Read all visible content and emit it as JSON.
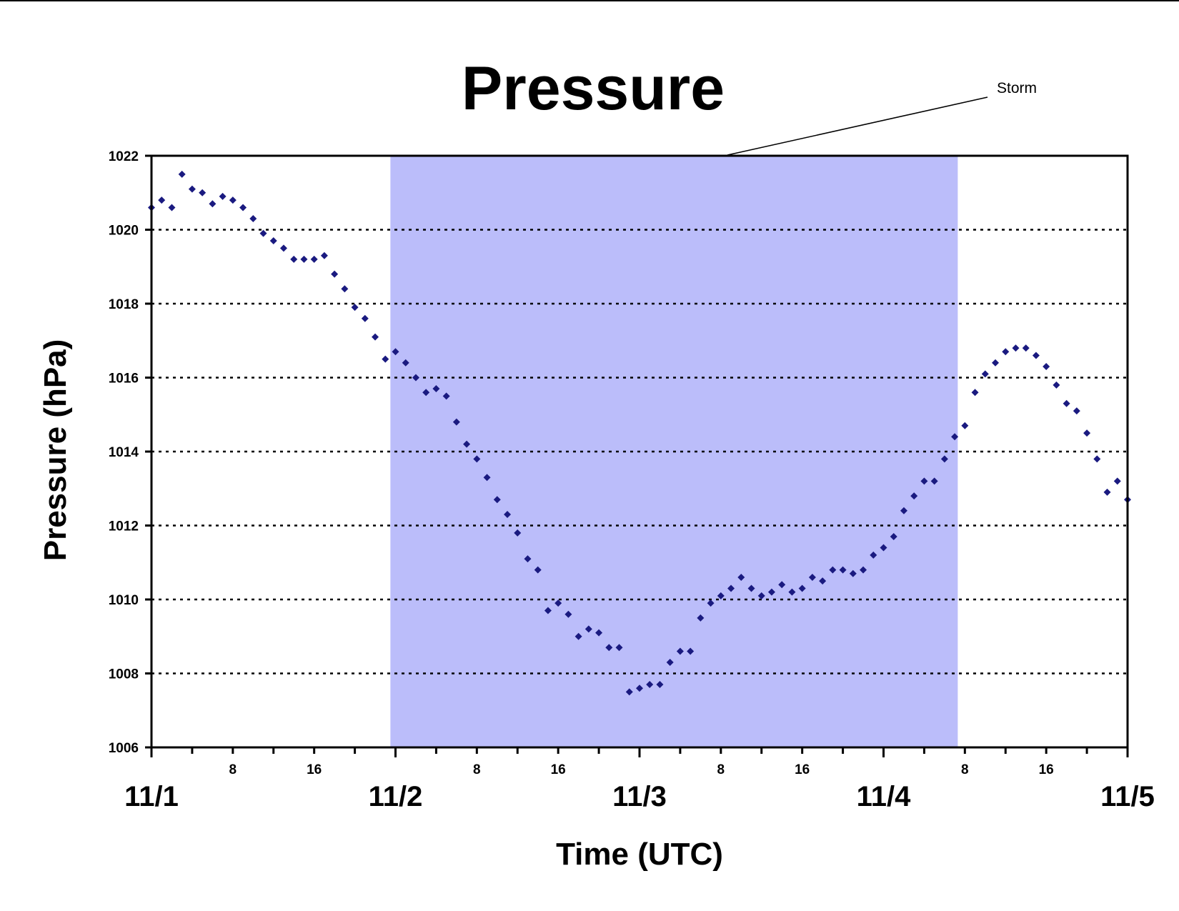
{
  "chart_data": {
    "type": "scatter",
    "title": "Pressure",
    "xlabel": "Time (UTC)",
    "ylabel": "Pressure (hPa)",
    "ylim": [
      1006,
      1022
    ],
    "yticks": [
      "1006",
      "1008",
      "1010",
      "1012",
      "1014",
      "1016",
      "1018",
      "1020",
      "1022"
    ],
    "xlim_hours": [
      0,
      96
    ],
    "x_major_labels": [
      "11/1",
      "11/2",
      "11/3",
      "11/4",
      "11/5"
    ],
    "x_minor_labels": [
      "8",
      "16",
      "8",
      "16",
      "8",
      "16",
      "8",
      "16"
    ],
    "grid": "horizontal dotted",
    "marker_color": "#1a1a80",
    "shade_color": "#bbbdfa",
    "annotation": {
      "label": "Storm",
      "shaded_range_hours": [
        23.5,
        79.3
      ]
    },
    "series": [
      {
        "x_hours": [
          0,
          1,
          2,
          3,
          4,
          5,
          6,
          7,
          8,
          9,
          10,
          11,
          12,
          13,
          14,
          15,
          16,
          17,
          18,
          19,
          20,
          21,
          22,
          23,
          24,
          25,
          26,
          27,
          28,
          29,
          30,
          31,
          32,
          33,
          34,
          35,
          36,
          37,
          38,
          39,
          40,
          41,
          42,
          43,
          44,
          45,
          46,
          47,
          48,
          49,
          50,
          51,
          52,
          53,
          54,
          55,
          56,
          57,
          58,
          59,
          60,
          61,
          62,
          63,
          64,
          65,
          66,
          67,
          68,
          69,
          70,
          71,
          72,
          73,
          74,
          75,
          76,
          77,
          78,
          79,
          80,
          81,
          82,
          83,
          84,
          85,
          86,
          87,
          88,
          89,
          90,
          91,
          92,
          93,
          94,
          95,
          96
        ],
        "values": [
          1020.6,
          1020.8,
          1020.6,
          1021.5,
          1021.1,
          1021.0,
          1020.7,
          1020.9,
          1020.8,
          1020.6,
          1020.3,
          1019.9,
          1019.7,
          1019.5,
          1019.2,
          1019.2,
          1019.2,
          1019.3,
          1018.8,
          1018.4,
          1017.9,
          1017.6,
          1017.1,
          1016.5,
          1016.7,
          1016.4,
          1016.0,
          1015.6,
          1015.7,
          1015.5,
          1014.8,
          1014.2,
          1013.8,
          1013.3,
          1012.7,
          1012.3,
          1011.8,
          1011.1,
          1010.8,
          1009.7,
          1009.9,
          1009.6,
          1009.0,
          1009.2,
          1009.1,
          1008.7,
          1008.7,
          1007.5,
          1007.6,
          1007.7,
          1007.7,
          1008.3,
          1008.6,
          1008.6,
          1009.5,
          1009.9,
          1010.1,
          1010.3,
          1010.6,
          1010.3,
          1010.1,
          1010.2,
          1010.4,
          1010.2,
          1010.3,
          1010.6,
          1010.5,
          1010.8,
          1010.8,
          1010.7,
          1010.8,
          1011.2,
          1011.4,
          1011.7,
          1012.4,
          1012.8,
          1013.2,
          1013.2,
          1013.8,
          1014.4,
          1014.7,
          1015.6,
          1016.1,
          1016.4,
          1016.7,
          1016.8,
          1016.8,
          1016.6,
          1016.3,
          1015.8,
          1015.3,
          1015.1,
          1014.5,
          1013.8,
          1012.9,
          1013.2,
          1012.7
        ]
      }
    ]
  }
}
